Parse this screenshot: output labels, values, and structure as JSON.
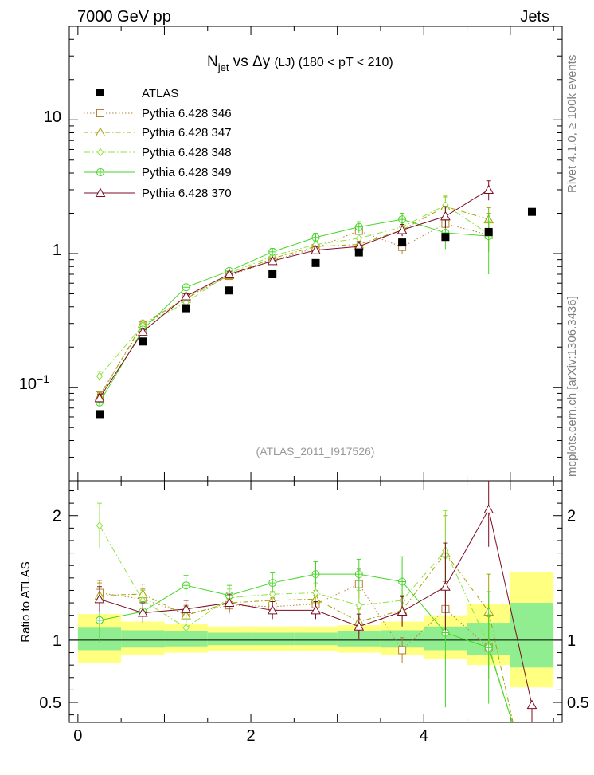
{
  "header": {
    "left": "7000 GeV pp",
    "right": "Jets",
    "side_top": "Rivet 4.1.0, ≥ 100k events",
    "side_bottom": "mcplots.cern.ch [arXiv:1306.3436]"
  },
  "chart_data": {
    "type": "scatter",
    "title": {
      "n": "N",
      "sub": "jet",
      "rest": " vs Δy ",
      "small": "(LJ)",
      "range": " (180 < pT < 210)"
    },
    "watermark": "(ATLAS_2011_I917526)",
    "x": [
      0.25,
      0.75,
      1.25,
      1.75,
      2.25,
      2.75,
      3.25,
      3.75,
      4.25,
      4.75
    ],
    "xlim": [
      -0.1,
      5.6
    ],
    "top": {
      "yscale": "log",
      "ylim": [
        0.02,
        50
      ],
      "yticks": [
        {
          "v": 0.1,
          "base": "10",
          "exp": "−1"
        },
        {
          "v": 1,
          "base": "1"
        },
        {
          "v": 10,
          "base": "10"
        }
      ]
    },
    "bottom": {
      "ylabel": "Ratio to ATLAS",
      "ylim": [
        0.34,
        2.28
      ],
      "yticks": [
        {
          "v": 0.5,
          "label": "0.5"
        },
        {
          "v": 1,
          "label": "1"
        },
        {
          "v": 2,
          "label": "2"
        }
      ],
      "xticks": [
        {
          "v": 0,
          "label": "0"
        },
        {
          "v": 2,
          "label": "2"
        },
        {
          "v": 4,
          "label": "4"
        }
      ],
      "bands": [
        {
          "x0": 0.0,
          "x1": 0.5,
          "g": [
            0.92,
            1.1
          ],
          "y": [
            0.82,
            1.21
          ]
        },
        {
          "x0": 0.5,
          "x1": 1.0,
          "g": [
            0.94,
            1.08
          ],
          "y": [
            0.88,
            1.15
          ]
        },
        {
          "x0": 1.0,
          "x1": 1.5,
          "g": [
            0.95,
            1.07
          ],
          "y": [
            0.9,
            1.13
          ]
        },
        {
          "x0": 1.5,
          "x1": 2.0,
          "g": [
            0.96,
            1.06
          ],
          "y": [
            0.91,
            1.11
          ]
        },
        {
          "x0": 2.0,
          "x1": 2.5,
          "g": [
            0.96,
            1.06
          ],
          "y": [
            0.91,
            1.11
          ]
        },
        {
          "x0": 2.5,
          "x1": 3.0,
          "g": [
            0.96,
            1.06
          ],
          "y": [
            0.91,
            1.11
          ]
        },
        {
          "x0": 3.0,
          "x1": 3.5,
          "g": [
            0.95,
            1.07
          ],
          "y": [
            0.9,
            1.12
          ]
        },
        {
          "x0": 3.5,
          "x1": 4.0,
          "g": [
            0.94,
            1.08
          ],
          "y": [
            0.88,
            1.15
          ]
        },
        {
          "x0": 4.0,
          "x1": 4.5,
          "g": [
            0.92,
            1.11
          ],
          "y": [
            0.85,
            1.2
          ]
        },
        {
          "x0": 4.5,
          "x1": 5.0,
          "g": [
            0.88,
            1.14
          ],
          "y": [
            0.8,
            1.29
          ]
        },
        {
          "x0": 5.0,
          "x1": 5.5,
          "g": [
            0.78,
            1.3
          ],
          "y": [
            0.62,
            1.55
          ]
        }
      ]
    },
    "data": {
      "name": "ATLAS",
      "x": [
        0.25,
        0.75,
        1.25,
        1.75,
        2.25,
        2.75,
        3.25,
        3.75,
        4.25,
        4.75,
        5.25
      ],
      "y": [
        0.063,
        0.22,
        0.39,
        0.53,
        0.7,
        0.85,
        1.02,
        1.21,
        1.33,
        1.45,
        2.05
      ]
    },
    "series": [
      {
        "name": "Pythia 6.428 346",
        "color": "#b5803c",
        "dash": "1.5,2.5",
        "marker": "square",
        "y": [
          0.087,
          0.29,
          0.47,
          0.68,
          0.89,
          1.1,
          1.48,
          1.12,
          1.67,
          1.38
        ],
        "err": [
          0.006,
          0.015,
          0.02,
          0.03,
          0.04,
          0.06,
          0.12,
          0.12,
          0.3,
          0.35
        ],
        "ratio": [
          1.38,
          1.33,
          1.21,
          1.28,
          1.27,
          1.29,
          1.45,
          0.92,
          1.25,
          0.94
        ],
        "rerr": [
          0.1,
          0.08,
          0.07,
          0.07,
          0.07,
          0.07,
          0.12,
          0.1,
          0.22,
          0.25
        ]
      },
      {
        "name": "Pythia 6.428 347",
        "color": "#a3a300",
        "dash": "6,3,1.5,3",
        "marker": "triangle",
        "y": [
          0.085,
          0.3,
          0.46,
          0.69,
          0.92,
          1.13,
          1.17,
          1.5,
          2.25,
          1.8
        ],
        "err": [
          0.006,
          0.015,
          0.02,
          0.03,
          0.04,
          0.06,
          0.1,
          0.15,
          0.4,
          0.4
        ],
        "ratio": [
          1.36,
          1.37,
          1.2,
          1.3,
          1.32,
          1.33,
          1.15,
          1.24,
          1.7,
          1.23
        ],
        "rerr": [
          0.1,
          0.08,
          0.07,
          0.07,
          0.07,
          0.07,
          0.1,
          0.12,
          0.3,
          0.3
        ]
      },
      {
        "name": "Pythia 6.428 348",
        "color": "#8fe23f",
        "dash": "8,3,1.5,3",
        "marker": "diamond",
        "y": [
          0.121,
          0.29,
          0.43,
          0.71,
          0.96,
          1.17,
          1.3,
          1.58,
          2.3,
          1.4
        ],
        "err": [
          0.01,
          0.015,
          0.02,
          0.03,
          0.04,
          0.06,
          0.1,
          0.15,
          0.4,
          0.35
        ],
        "ratio": [
          1.92,
          1.32,
          1.1,
          1.34,
          1.37,
          1.38,
          1.28,
          1.32,
          1.72,
          0.96
        ],
        "rerr": [
          0.18,
          0.08,
          0.07,
          0.07,
          0.07,
          0.08,
          0.12,
          0.15,
          0.32,
          0.25
        ]
      },
      {
        "name": "Pythia 6.428 349",
        "color": "#45d625",
        "dash": "",
        "marker": "circle",
        "y": [
          0.077,
          0.27,
          0.56,
          0.74,
          1.03,
          1.32,
          1.58,
          1.8,
          1.43,
          1.35
        ],
        "err": [
          0.006,
          0.015,
          0.025,
          0.035,
          0.06,
          0.1,
          0.15,
          0.2,
          0.35,
          0.65
        ],
        "ratio": [
          1.16,
          1.23,
          1.44,
          1.36,
          1.46,
          1.53,
          1.53,
          1.47,
          1.06,
          0.94
        ],
        "rerr": [
          0.18,
          0.08,
          0.08,
          0.08,
          0.08,
          0.1,
          0.12,
          0.2,
          0.6,
          0.45
        ]
      },
      {
        "name": "Pythia 6.428 370",
        "color": "#7d0d24",
        "dash": "",
        "marker": "triangle-open",
        "y": [
          0.083,
          0.26,
          0.48,
          0.7,
          0.88,
          1.06,
          1.13,
          1.5,
          1.9,
          3.0
        ],
        "err": [
          0.006,
          0.015,
          0.02,
          0.03,
          0.04,
          0.06,
          0.1,
          0.15,
          0.35,
          0.5
        ],
        "ratio": [
          1.33,
          1.22,
          1.25,
          1.3,
          1.24,
          1.24,
          1.11,
          1.23,
          1.43,
          2.05
        ],
        "rerr": [
          0.1,
          0.08,
          0.07,
          0.07,
          0.07,
          0.07,
          0.1,
          0.12,
          0.35,
          0.3
        ],
        "tail": [
          5.25,
          0.48
        ]
      }
    ]
  }
}
